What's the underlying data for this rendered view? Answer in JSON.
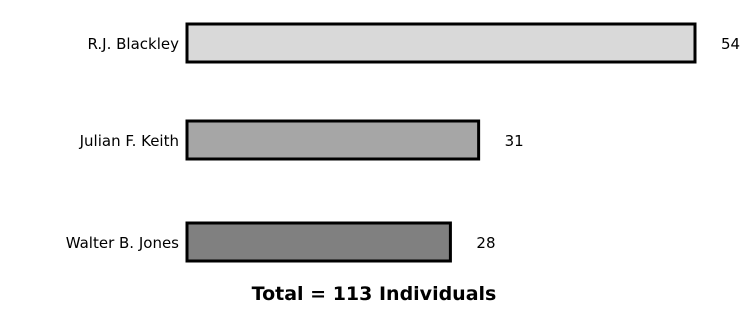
{
  "chart_data": {
    "type": "bar",
    "orientation": "horizontal",
    "categories": [
      "R.J. Blackley",
      "Julian F. Keith",
      "Walter B. Jones"
    ],
    "values": [
      54,
      31,
      28
    ],
    "bar_colors": [
      "#d9d9d9",
      "#a6a6a6",
      "#808080"
    ],
    "annotation": "Total = 113 Individuals",
    "grid": false,
    "axes_visible": false
  }
}
